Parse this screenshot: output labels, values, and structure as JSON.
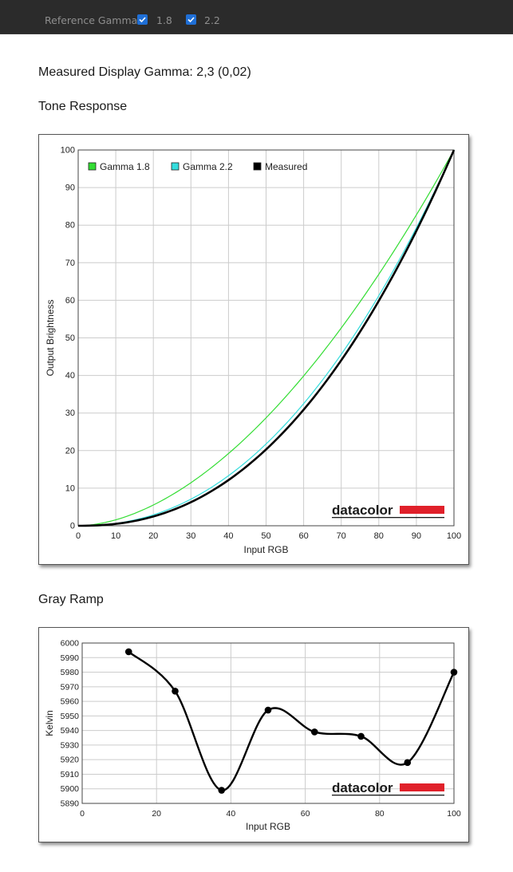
{
  "toolbar": {
    "reference_gamma_label": "Reference Gamma:",
    "options": [
      {
        "label": "1.8",
        "checked": true
      },
      {
        "label": "2.2",
        "checked": true
      }
    ],
    "checkbox_color": "#1f6fd6"
  },
  "measured_gamma_text": "Measured Display Gamma: 2,3 (0,02)",
  "tone_response": {
    "heading": "Tone Response",
    "brand": "datacolor",
    "chart_data": {
      "type": "line",
      "xlabel": "Input RGB",
      "ylabel": "Output Brightness",
      "xlim": [
        0,
        100
      ],
      "ylim": [
        0,
        100
      ],
      "xticks": [
        "0",
        "10",
        "20",
        "30",
        "40",
        "50",
        "60",
        "70",
        "80",
        "90",
        "100"
      ],
      "yticks": [
        "0",
        "10",
        "20",
        "30",
        "40",
        "50",
        "60",
        "70",
        "80",
        "90",
        "100"
      ],
      "grid": true,
      "legend_position": "top-left",
      "series": [
        {
          "name": "Gamma 1.8",
          "color": "#33dd33",
          "gamma": 1.8
        },
        {
          "name": "Gamma 2.2",
          "color": "#33dddd",
          "gamma": 2.2
        },
        {
          "name": "Measured",
          "color": "#000000",
          "gamma": 2.3
        }
      ]
    }
  },
  "gray_ramp": {
    "heading": "Gray Ramp",
    "brand": "datacolor",
    "chart_data": {
      "type": "line",
      "xlabel": "Input RGB",
      "ylabel": "Kelvin",
      "xlim": [
        0,
        100
      ],
      "ylim": [
        5890,
        6000
      ],
      "xticks": [
        "0",
        "20",
        "40",
        "60",
        "80",
        "100"
      ],
      "yticks": [
        "5890",
        "5900",
        "5910",
        "5920",
        "5930",
        "5940",
        "5950",
        "5960",
        "5970",
        "5980",
        "5990",
        "6000"
      ],
      "grid": true,
      "x": [
        12.5,
        25,
        37.5,
        50,
        62.5,
        75,
        87.5,
        100
      ],
      "values": [
        5994,
        5967,
        5899,
        5954,
        5939,
        5936,
        5918,
        5980
      ]
    }
  },
  "colors": {
    "topbar_bg": "#2b2b2b",
    "brand_red": "#e0202a"
  }
}
